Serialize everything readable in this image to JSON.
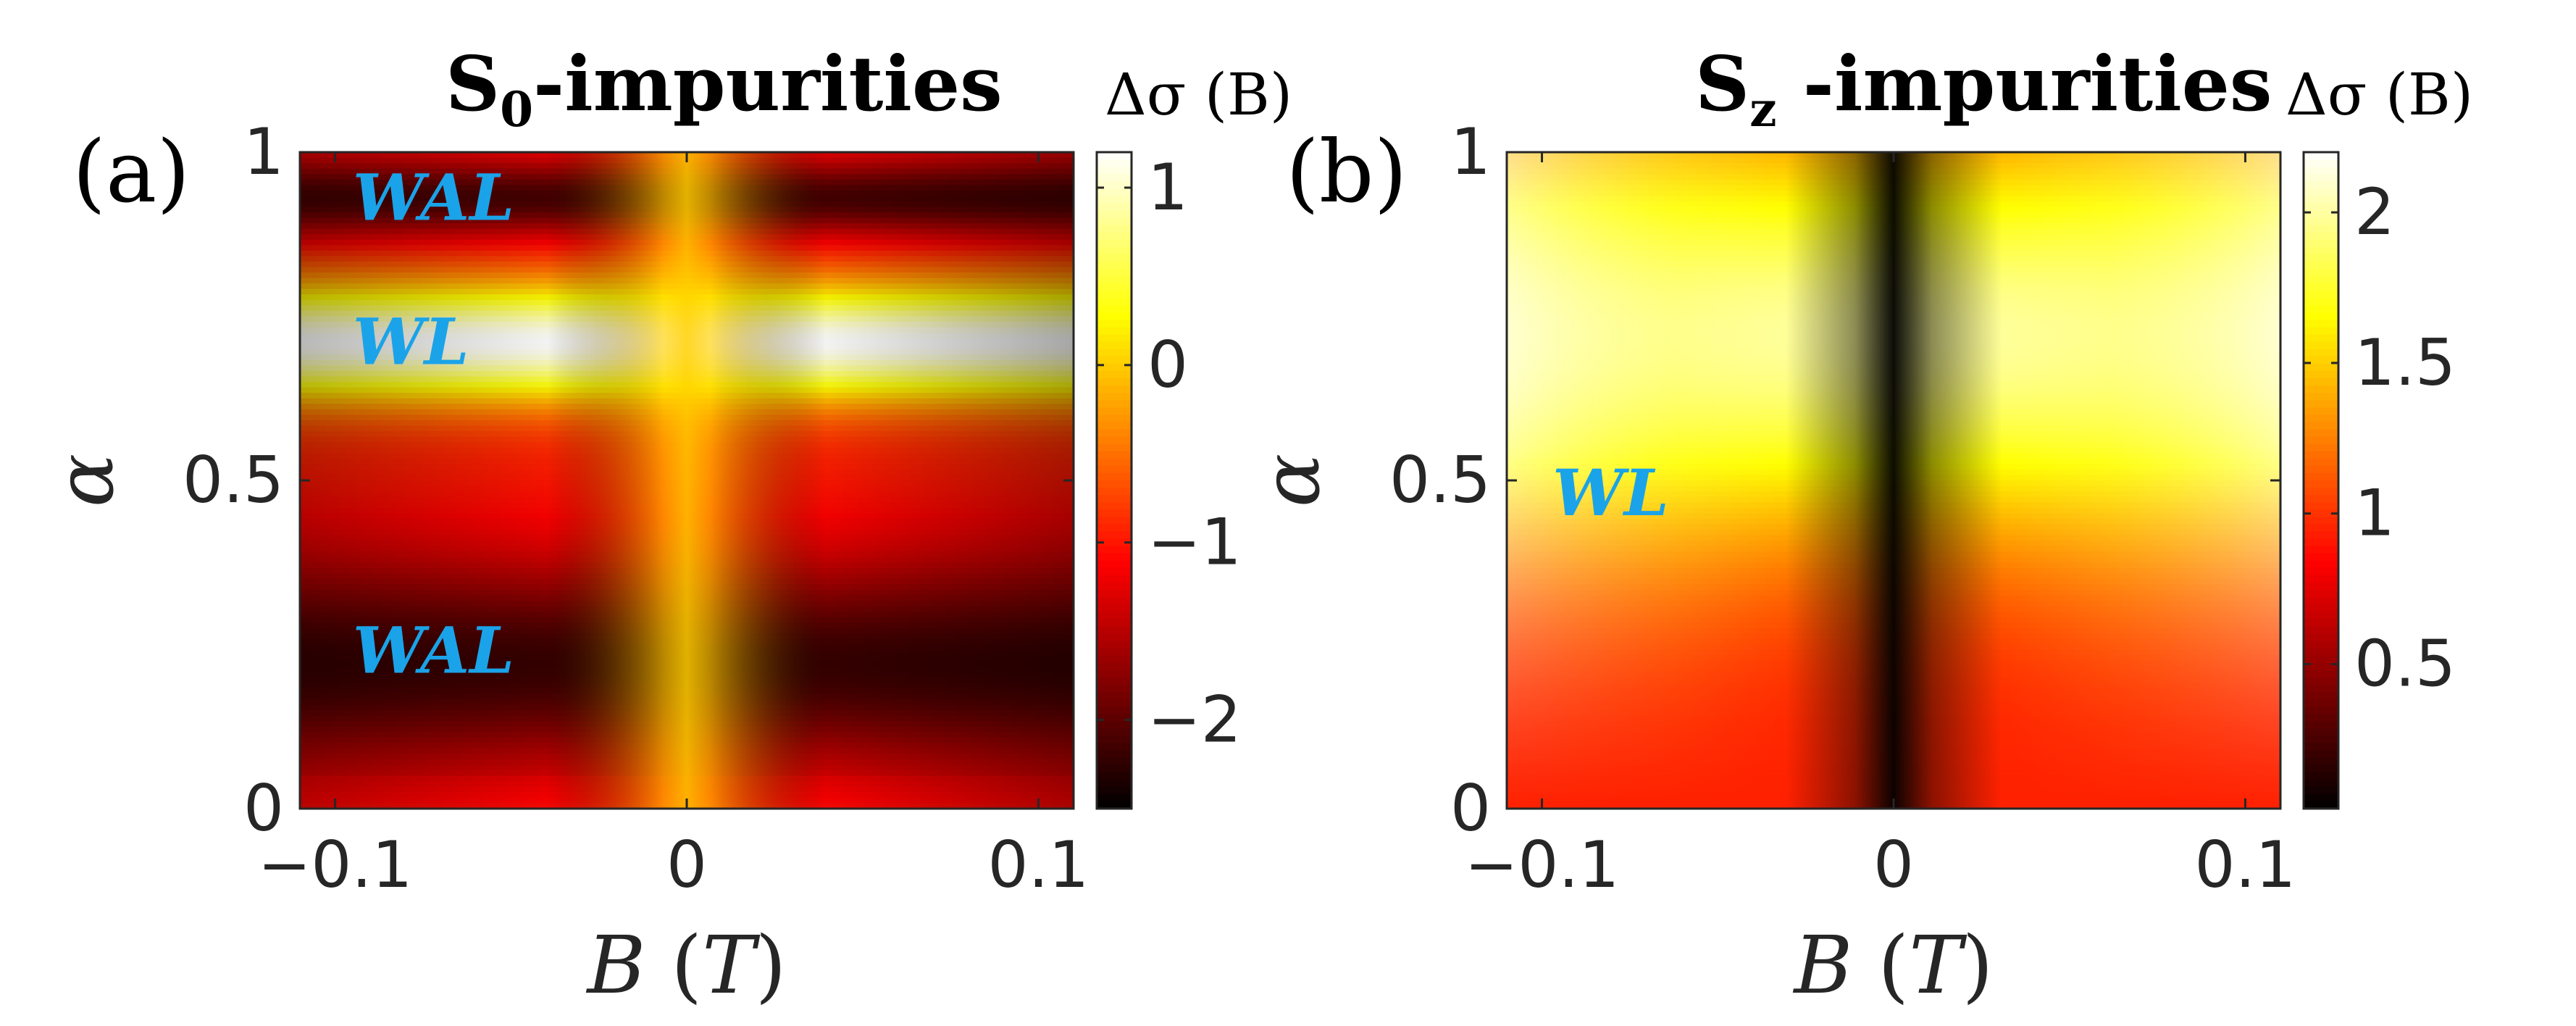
{
  "chart_data": [
    {
      "type": "heatmap",
      "panel_label": "(a)",
      "title_main": "S",
      "title_sub": "0",
      "title_rest": "-impurities",
      "colorbar_label": "Δσ (B)",
      "xlabel_var": "B",
      "xlabel_unit": "T",
      "ylabel": "α",
      "xlim": [
        -0.11,
        0.11
      ],
      "ylim": [
        0,
        1
      ],
      "x_ticks": [
        {
          "v": -0.1,
          "label": "−0.1"
        },
        {
          "v": 0,
          "label": "0"
        },
        {
          "v": 0.1,
          "label": "0.1"
        }
      ],
      "y_ticks": [
        {
          "v": 0,
          "label": "0"
        },
        {
          "v": 0.5,
          "label": "0.5"
        },
        {
          "v": 1,
          "label": "1"
        }
      ],
      "clim": [
        -2.5,
        1.2
      ],
      "colorbar_ticks": [
        {
          "v": 1,
          "label": "1"
        },
        {
          "v": 0,
          "label": "0"
        },
        {
          "v": -1,
          "label": "−1"
        },
        {
          "v": -2,
          "label": "−2"
        }
      ],
      "colormap": "hot",
      "annotations": [
        {
          "text": "WAL",
          "x": -0.095,
          "alpha": 0.93,
          "color": "#1aa3e8"
        },
        {
          "text": "WL",
          "x": -0.095,
          "alpha": 0.71,
          "color": "#1aa3e8"
        },
        {
          "text": "WAL",
          "x": -0.095,
          "alpha": 0.24,
          "color": "#1aa3e8"
        }
      ]
    },
    {
      "type": "heatmap",
      "panel_label": "(b)",
      "title_main": "S",
      "title_sub": "z",
      "title_rest": " -impurities",
      "colorbar_label": "Δσ (B)",
      "xlabel_var": "B",
      "xlabel_unit": "T",
      "ylabel": "α",
      "xlim": [
        -0.11,
        0.11
      ],
      "ylim": [
        0,
        1
      ],
      "x_ticks": [
        {
          "v": -0.1,
          "label": "−0.1"
        },
        {
          "v": 0,
          "label": "0"
        },
        {
          "v": 0.1,
          "label": "0.1"
        }
      ],
      "y_ticks": [
        {
          "v": 0,
          "label": "0"
        },
        {
          "v": 0.5,
          "label": "0.5"
        },
        {
          "v": 1,
          "label": "1"
        }
      ],
      "clim": [
        0.02,
        2.2
      ],
      "colorbar_ticks": [
        {
          "v": 2,
          "label": "2"
        },
        {
          "v": 1.5,
          "label": "1.5"
        },
        {
          "v": 1,
          "label": "1"
        },
        {
          "v": 0.5,
          "label": "0.5"
        }
      ],
      "colormap": "hot",
      "annotations": [
        {
          "text": "WL",
          "x": -0.097,
          "alpha": 0.48,
          "color": "#1aa3e8"
        }
      ]
    }
  ]
}
